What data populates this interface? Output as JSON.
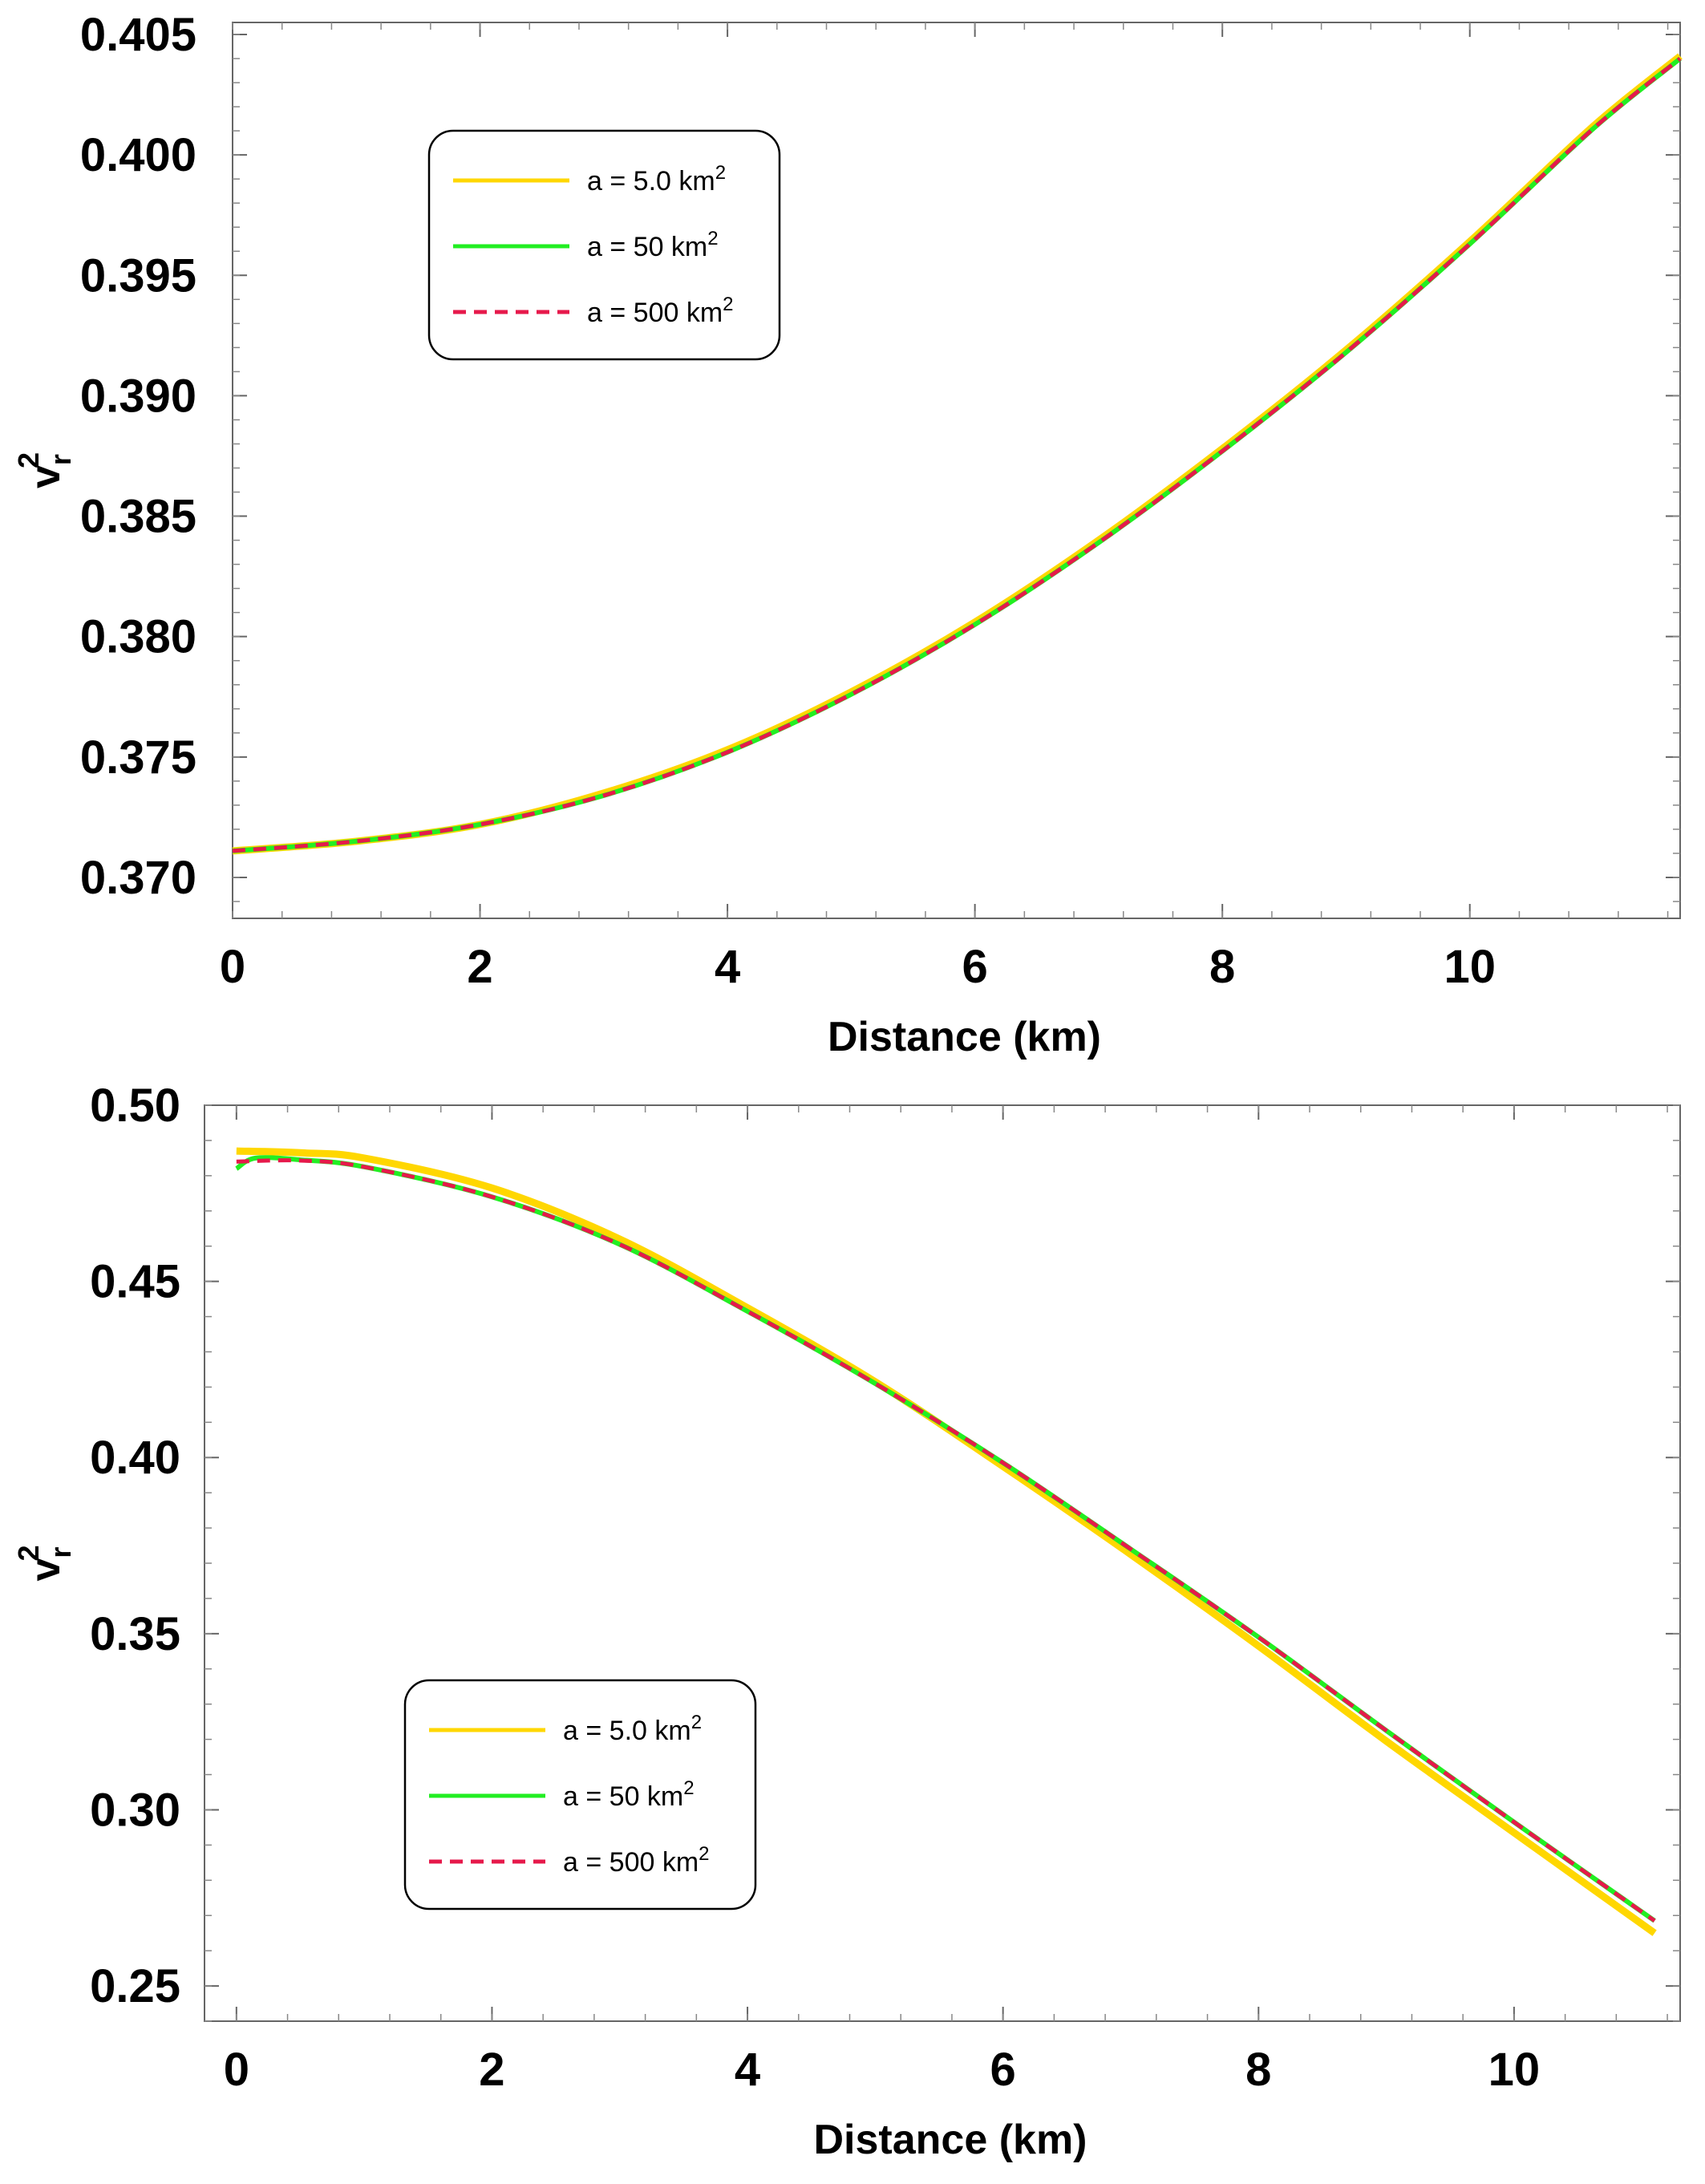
{
  "chart_data": [
    {
      "type": "line",
      "xlabel": "Distance (km)",
      "ylabel_base": "v",
      "ylabel_sub": "r",
      "ylabel_sup": "2",
      "xlim": [
        0,
        11.7
      ],
      "ylim": [
        0.3683,
        0.4055
      ],
      "xticks": [
        "0",
        "2",
        "4",
        "6",
        "8",
        "10"
      ],
      "xtick_values": [
        0,
        2,
        4,
        6,
        8,
        10
      ],
      "yticks": [
        "0.370",
        "0.375",
        "0.380",
        "0.385",
        "0.390",
        "0.395",
        "0.400",
        "0.405"
      ],
      "ytick_values": [
        0.37,
        0.375,
        0.38,
        0.385,
        0.39,
        0.395,
        0.4,
        0.405
      ],
      "grid": false,
      "legend_position": "top-left",
      "series": [
        {
          "name": "a = 5.0 km",
          "name_sup": "2",
          "color": "#ffd700",
          "style": "solid",
          "x": [
            0,
            1,
            2,
            3,
            4,
            5,
            6,
            7,
            8,
            9,
            10,
            11,
            11.7
          ],
          "y": [
            0.3711,
            0.3715,
            0.3722,
            0.3735,
            0.3753,
            0.3777,
            0.3806,
            0.384,
            0.3878,
            0.3919,
            0.3964,
            0.4012,
            0.4041
          ]
        },
        {
          "name": "a = 50 km",
          "name_sup": "2",
          "color": "#22ee22",
          "style": "solid",
          "x": [
            0,
            1,
            2,
            3,
            4,
            5,
            6,
            7,
            8,
            9,
            10,
            11,
            11.7
          ],
          "y": [
            0.3711,
            0.3715,
            0.3722,
            0.3734,
            0.3752,
            0.3776,
            0.3805,
            0.3839,
            0.3877,
            0.3918,
            0.3963,
            0.4011,
            0.404
          ]
        },
        {
          "name": "a = 500 km",
          "name_sup": "2",
          "color": "#e6194b",
          "style": "dashed",
          "x": [
            0,
            1,
            2,
            3,
            4,
            5,
            6,
            7,
            8,
            9,
            10,
            11,
            11.7
          ],
          "y": [
            0.3711,
            0.3715,
            0.3722,
            0.3734,
            0.3752,
            0.3776,
            0.3805,
            0.3839,
            0.3877,
            0.3918,
            0.3963,
            0.4011,
            0.404
          ]
        }
      ]
    },
    {
      "type": "line",
      "xlabel": "Distance (km)",
      "ylabel_base": "v",
      "ylabel_sub": "r",
      "ylabel_sup": "2",
      "xlim": [
        -0.25,
        11.3
      ],
      "ylim": [
        0.24,
        0.5
      ],
      "xticks": [
        "0",
        "2",
        "4",
        "6",
        "8",
        "10"
      ],
      "xtick_values": [
        0,
        2,
        4,
        6,
        8,
        10
      ],
      "yticks": [
        "0.25",
        "0.30",
        "0.35",
        "0.40",
        "0.45",
        "0.50"
      ],
      "ytick_values": [
        0.25,
        0.3,
        0.35,
        0.4,
        0.45,
        0.5
      ],
      "grid": false,
      "legend_position": "bottom-left",
      "series": [
        {
          "name": "a = 5.0 km",
          "name_sup": "2",
          "color": "#ffd700",
          "style": "solid",
          "x": [
            0,
            0.5,
            1,
            2,
            3,
            4,
            5,
            6,
            7,
            8,
            9,
            10,
            11.1
          ],
          "y": [
            0.487,
            0.4865,
            0.485,
            0.4765,
            0.462,
            0.4425,
            0.4215,
            0.3975,
            0.3725,
            0.3465,
            0.3195,
            0.2935,
            0.265
          ]
        },
        {
          "name": "a = 50 km",
          "name_sup": "2",
          "color": "#22ee22",
          "style": "solid",
          "x": [
            0,
            0.15,
            0.5,
            1,
            2,
            3,
            4,
            5,
            6,
            7,
            8,
            9,
            10,
            11.1
          ],
          "y": [
            0.482,
            0.485,
            0.4845,
            0.4825,
            0.474,
            0.4605,
            0.4415,
            0.421,
            0.3985,
            0.374,
            0.349,
            0.3225,
            0.2965,
            0.2685
          ]
        },
        {
          "name": "a = 500 km",
          "name_sup": "2",
          "color": "#e6194b",
          "style": "dashed",
          "x": [
            0,
            0.5,
            1,
            2,
            3,
            4,
            5,
            6,
            7,
            8,
            9,
            10,
            11.1
          ],
          "y": [
            0.484,
            0.4843,
            0.4825,
            0.474,
            0.4605,
            0.4415,
            0.421,
            0.3985,
            0.374,
            0.349,
            0.3225,
            0.2965,
            0.2685
          ]
        }
      ]
    }
  ]
}
